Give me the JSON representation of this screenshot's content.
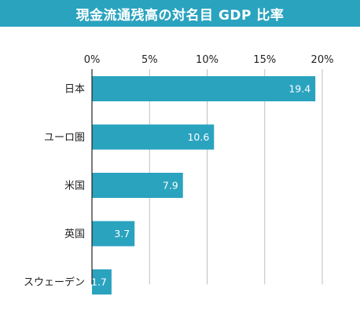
{
  "title": "現金流通残高の対名目 GDP 比率",
  "chart_data": {
    "type": "bar",
    "orientation": "horizontal",
    "title": "現金流通残高の対名目 GDP 比率",
    "categories": [
      "日本",
      "ユーロ圏",
      "米国",
      "英国",
      "スウェーデン"
    ],
    "values": [
      19.4,
      10.6,
      7.9,
      3.7,
      1.7
    ],
    "value_labels": [
      "19.4",
      "10.6",
      "7.9",
      "3.7",
      "1.7"
    ],
    "xlim": [
      0,
      20
    ],
    "xticks": [
      0,
      5,
      10,
      15,
      20
    ],
    "xtick_labels": [
      "0%",
      "5%",
      "10%",
      "15%",
      "20%"
    ],
    "grid": true,
    "bar_color": "#2aa3bf",
    "grid_color": "#bfbfbf"
  }
}
